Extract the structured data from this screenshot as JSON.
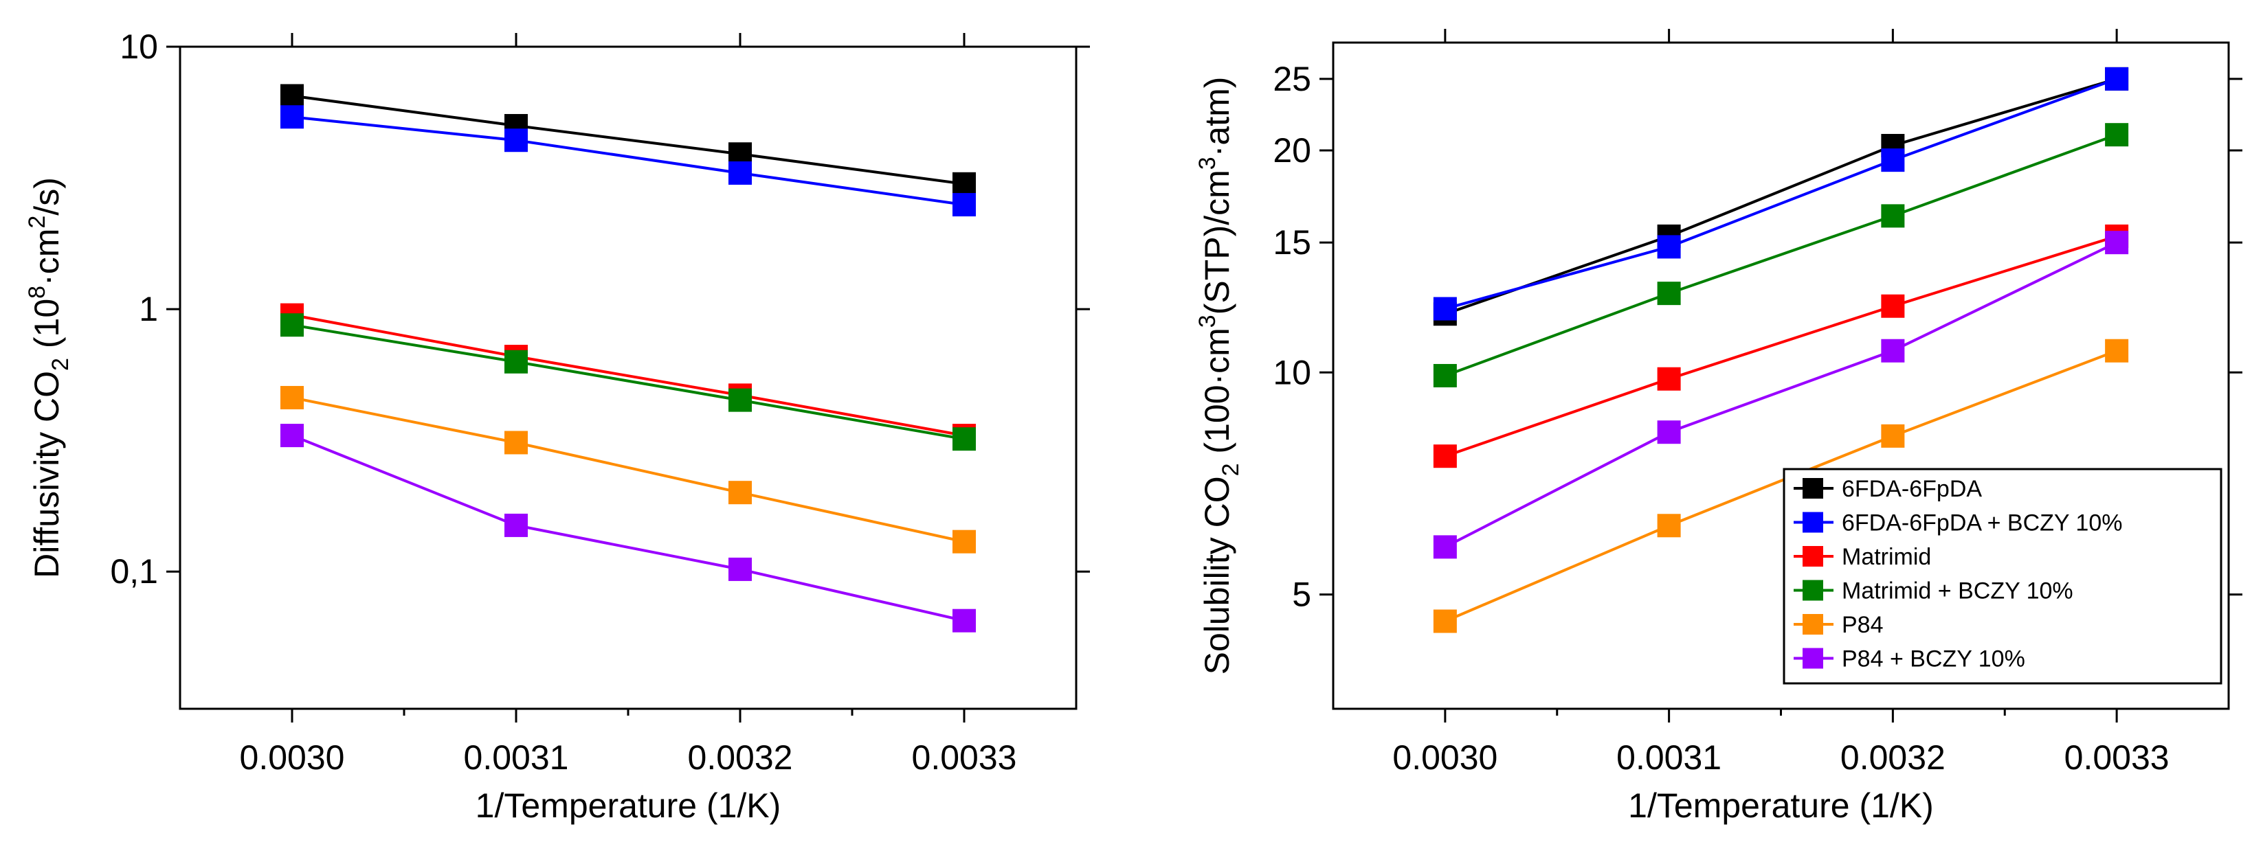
{
  "figure": {
    "description_panels": 2
  },
  "colors": {
    "6FDA-6FpDA": "#000000",
    "6FDA-6FpDA + BCZY 10%": "#0000ff",
    "Matrimid": "#ff0000",
    "Matrimid + BCZY 10%": "#008000",
    "P84": "#ff8c00",
    "P84 + BCZY 10%": "#9900ff"
  },
  "chart_data": [
    {
      "type": "line",
      "scale_y": "log",
      "xlabel": "1/Temperature (1/K)",
      "ylabel_main": "Diffusivity CO",
      "ylabel_sub": "2",
      "ylabel_unit_open": " (10",
      "ylabel_sup": "8",
      "ylabel_mid": "·cm",
      "ylabel_sup2": "2",
      "ylabel_end": "/s)",
      "xlim": [
        0.00295,
        0.00335
      ],
      "ylim": [
        0.03,
        10
      ],
      "x_ticks": [
        0.003,
        0.0031,
        0.0032,
        0.0033
      ],
      "x_tick_labels": [
        "0.0030",
        "0.0031",
        "0.0032",
        "0.0033"
      ],
      "y_ticks": [
        0.1,
        1,
        10
      ],
      "y_tick_labels": [
        "0,1",
        "1",
        "10"
      ],
      "x": [
        0.003,
        0.0031,
        0.0032,
        0.0033
      ],
      "series": [
        {
          "name": "6FDA-6FpDA",
          "values": [
            6.5,
            5.0,
            3.9,
            3.0
          ]
        },
        {
          "name": "6FDA-6FpDA + BCZY 10%",
          "values": [
            5.4,
            4.4,
            3.3,
            2.5
          ]
        },
        {
          "name": "Matrimid",
          "values": [
            0.95,
            0.66,
            0.47,
            0.33
          ]
        },
        {
          "name": "Matrimid + BCZY 10%",
          "values": [
            0.87,
            0.63,
            0.45,
            0.32
          ]
        },
        {
          "name": "P84",
          "values": [
            0.46,
            0.31,
            0.2,
            0.13
          ]
        },
        {
          "name": "P84 + BCZY 10%",
          "values": [
            0.33,
            0.15,
            0.102,
            0.065
          ]
        }
      ]
    },
    {
      "type": "line",
      "scale_y": "log",
      "xlabel": "1/Temperature (1/K)",
      "ylabel_main": "Solubility CO",
      "ylabel_sub": "2",
      "ylabel_unit_open": " (100·cm",
      "ylabel_sup": "3",
      "ylabel_mid": "(STP)/cm",
      "ylabel_sup2": "3",
      "ylabel_end": "·atm)",
      "xlim": [
        0.00295,
        0.00335
      ],
      "ylim": [
        3.5,
        28
      ],
      "x_ticks": [
        0.003,
        0.0031,
        0.0032,
        0.0033
      ],
      "x_tick_labels": [
        "0.0030",
        "0.0031",
        "0.0032",
        "0.0033"
      ],
      "y_ticks": [
        5,
        10,
        15,
        20,
        25
      ],
      "y_tick_labels": [
        "5",
        "10",
        "15",
        "20",
        "25"
      ],
      "x": [
        0.003,
        0.0031,
        0.0032,
        0.0033
      ],
      "legend_position": "bottom-right",
      "series": [
        {
          "name": "6FDA-6FpDA",
          "values": [
            12.0,
            15.3,
            20.3,
            25.0
          ]
        },
        {
          "name": "6FDA-6FpDA + BCZY 10%",
          "values": [
            12.2,
            14.8,
            19.4,
            25.0
          ]
        },
        {
          "name": "Matrimid",
          "values": [
            7.7,
            9.8,
            12.3,
            15.3
          ]
        },
        {
          "name": "Matrimid + BCZY 10%",
          "values": [
            9.9,
            12.8,
            16.3,
            21.0
          ]
        },
        {
          "name": "P84",
          "values": [
            4.6,
            6.2,
            8.2,
            10.7
          ]
        },
        {
          "name": "P84 + BCZY 10%",
          "values": [
            5.8,
            8.3,
            10.7,
            15.0
          ]
        }
      ]
    }
  ]
}
